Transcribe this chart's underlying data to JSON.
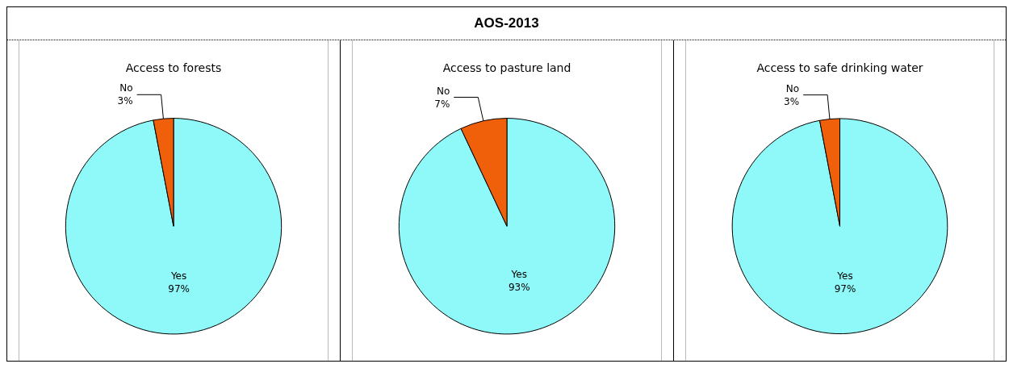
{
  "chart_data": [
    {
      "type": "other",
      "title": "AOS-2013"
    },
    {
      "type": "pie",
      "title": "Access to forests",
      "categories": [
        "No",
        "Yes"
      ],
      "values": [
        3,
        97
      ],
      "value_labels": [
        "3%",
        "97%"
      ],
      "colors": [
        "#f0600a",
        "#8ff8f8"
      ]
    },
    {
      "type": "pie",
      "title": "Access to pasture land",
      "categories": [
        "No",
        "Yes"
      ],
      "values": [
        7,
        93
      ],
      "value_labels": [
        "7%",
        "93%"
      ],
      "colors": [
        "#f0600a",
        "#8ff8f8"
      ]
    },
    {
      "type": "pie",
      "title": "Access to safe drinking water",
      "categories": [
        "No",
        "Yes"
      ],
      "values": [
        3,
        97
      ],
      "value_labels": [
        "3%",
        "97%"
      ],
      "colors": [
        "#f0600a",
        "#8ff8f8"
      ]
    }
  ]
}
